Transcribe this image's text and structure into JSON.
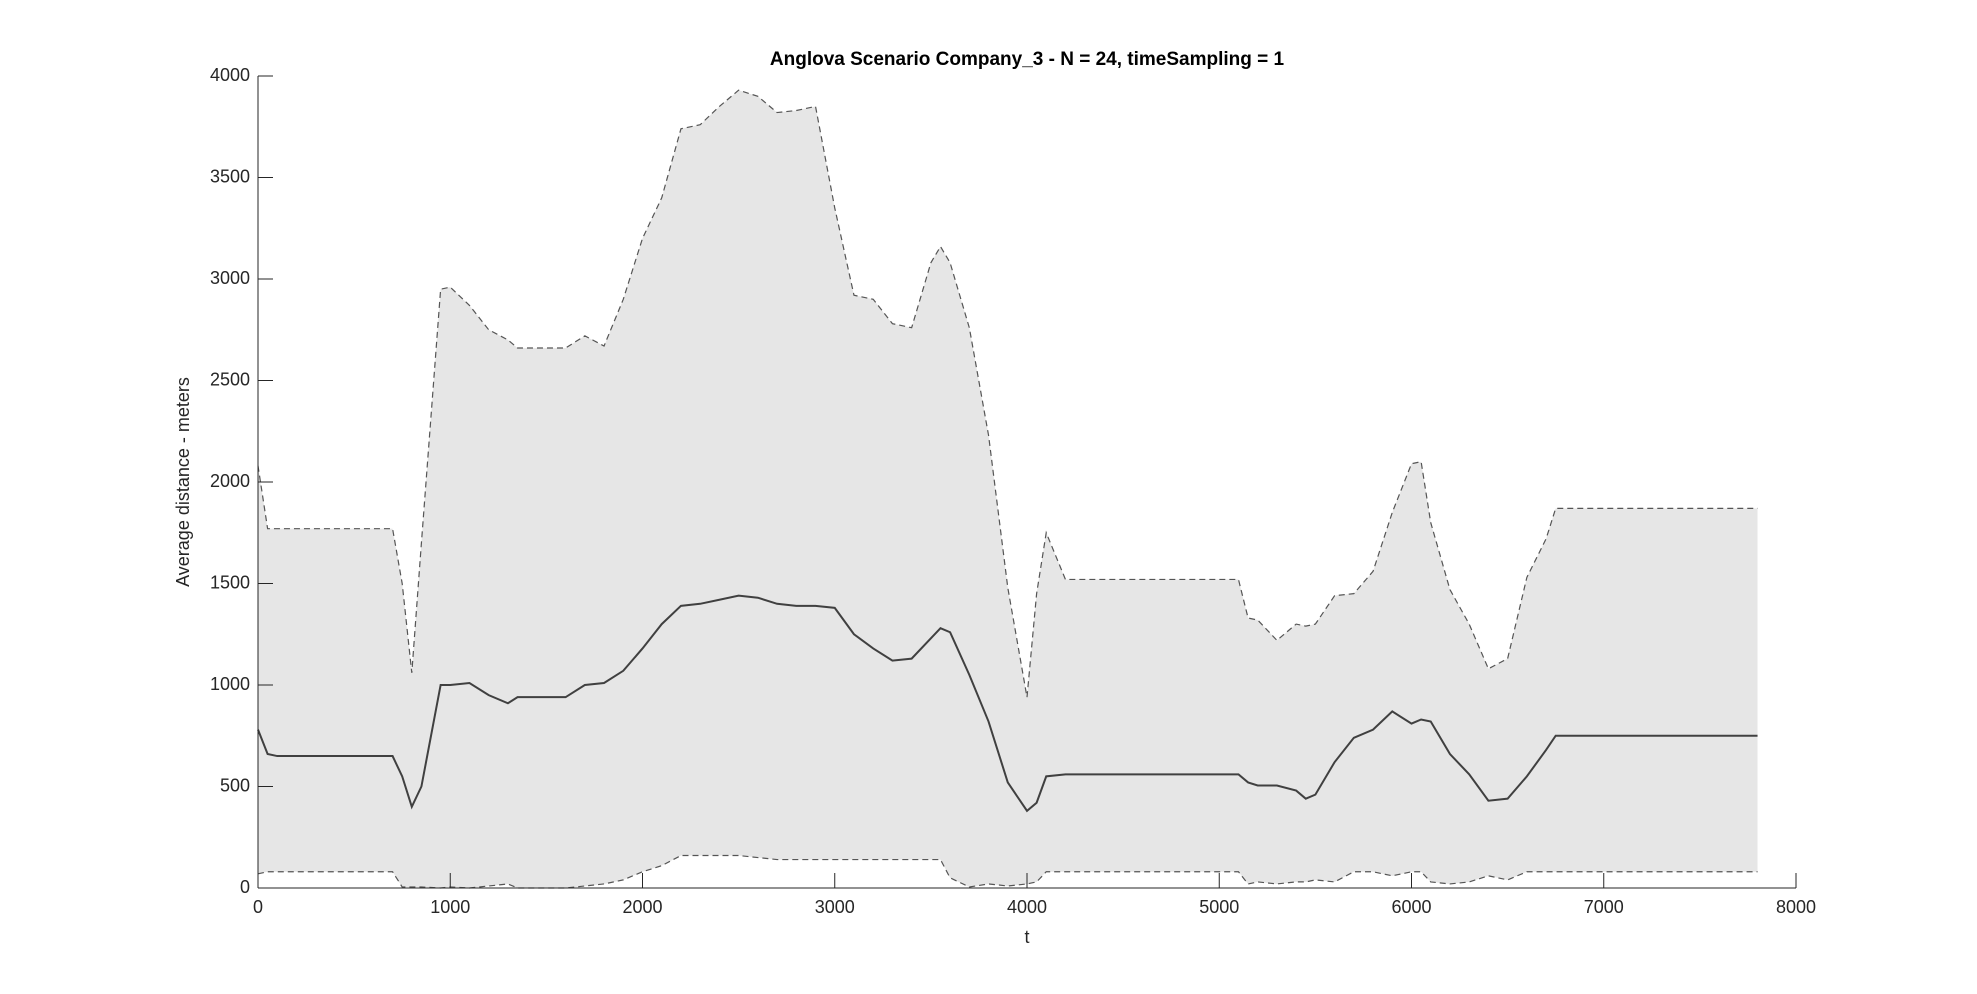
{
  "chart_data": {
    "type": "line",
    "title": "Anglova Scenario Company_3 - N = 24, timeSampling = 1",
    "xlabel": "t",
    "ylabel": "Average distance - meters",
    "x": [
      0,
      50,
      100,
      700,
      750,
      800,
      850,
      950,
      1000,
      1100,
      1200,
      1300,
      1350,
      1600,
      1700,
      1800,
      1900,
      2000,
      2100,
      2200,
      2300,
      2400,
      2500,
      2600,
      2700,
      2800,
      2900,
      3000,
      3100,
      3200,
      3300,
      3400,
      3500,
      3550,
      3600,
      3700,
      3800,
      3900,
      4000,
      4050,
      4100,
      4200,
      5100,
      5150,
      5200,
      5300,
      5400,
      5450,
      5500,
      5600,
      5700,
      5800,
      5900,
      6000,
      6050,
      6100,
      6200,
      6300,
      6400,
      6500,
      6600,
      6700,
      6750,
      7800
    ],
    "series": [
      {
        "role": "upper",
        "color": "#555555",
        "style": "dashed",
        "values": [
          2080,
          1770,
          1770,
          1770,
          1500,
          1060,
          1700,
          2950,
          2960,
          2870,
          2750,
          2700,
          2660,
          2660,
          2720,
          2670,
          2900,
          3200,
          3400,
          3740,
          3760,
          3850,
          3930,
          3900,
          3820,
          3830,
          3850,
          3350,
          2920,
          2900,
          2780,
          2760,
          3080,
          3160,
          3080,
          2760,
          2230,
          1480,
          940,
          1450,
          1750,
          1520,
          1520,
          1330,
          1320,
          1220,
          1300,
          1290,
          1300,
          1440,
          1450,
          1560,
          1850,
          2090,
          2100,
          1800,
          1470,
          1300,
          1080,
          1130,
          1530,
          1720,
          1870,
          1870
        ]
      },
      {
        "role": "mean",
        "color": "#404040",
        "style": "solid",
        "values": [
          780,
          660,
          650,
          650,
          550,
          400,
          500,
          1000,
          1000,
          1010,
          950,
          910,
          940,
          940,
          1000,
          1010,
          1070,
          1180,
          1300,
          1390,
          1400,
          1420,
          1440,
          1430,
          1400,
          1390,
          1390,
          1380,
          1250,
          1180,
          1120,
          1130,
          1230,
          1280,
          1260,
          1050,
          820,
          520,
          380,
          420,
          550,
          560,
          560,
          520,
          505,
          505,
          480,
          440,
          460,
          620,
          740,
          780,
          870,
          810,
          830,
          820,
          660,
          560,
          430,
          440,
          550,
          680,
          750,
          750
        ]
      },
      {
        "role": "lower",
        "color": "#555555",
        "style": "dashed",
        "values": [
          70,
          80,
          80,
          80,
          5,
          5,
          5,
          0,
          5,
          0,
          10,
          20,
          0,
          0,
          10,
          20,
          40,
          80,
          110,
          160,
          160,
          160,
          160,
          150,
          140,
          140,
          140,
          140,
          140,
          140,
          140,
          140,
          140,
          140,
          50,
          5,
          20,
          10,
          20,
          30,
          80,
          80,
          80,
          20,
          30,
          20,
          30,
          30,
          40,
          30,
          80,
          80,
          60,
          80,
          80,
          30,
          20,
          30,
          60,
          40,
          80,
          80,
          80,
          80
        ]
      }
    ],
    "band_color": "#e6e6e6",
    "xlim": [
      0,
      8000
    ],
    "xticks": [
      0,
      1000,
      2000,
      3000,
      4000,
      5000,
      6000,
      7000,
      8000
    ],
    "ylim": [
      0,
      4000
    ],
    "yticks": [
      0,
      500,
      1000,
      1500,
      2000,
      2500,
      3000,
      3500,
      4000
    ],
    "grid": false
  }
}
